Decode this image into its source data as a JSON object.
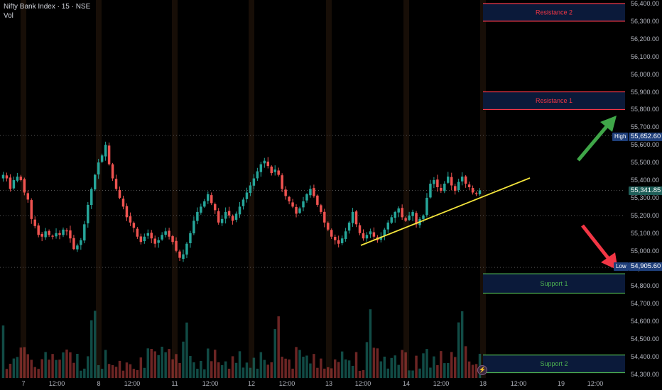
{
  "header": {
    "title": "Nifty Bank Index · 15 · NSE",
    "volume_label": "Vol"
  },
  "colors": {
    "up": "#26a69a",
    "down": "#ef5350",
    "resistance": "#f23645",
    "support": "#4caf50",
    "zone_fill": "#0b1a3a",
    "trendline": "#f5e63c",
    "arrow_up": "#3fa648",
    "arrow_down": "#f23645",
    "current_tag": "#1f5f59",
    "high_tag": "#1f3f7a",
    "low_tag": "#1f3f7a"
  },
  "price_tags": {
    "current": "55,341.85",
    "high_label": "High",
    "high_value": "55,652.60",
    "low_label": "Low",
    "low_value": "54,905.60"
  },
  "zones": [
    {
      "name": "resistance-2",
      "label": "Resistance 2",
      "type": "resistance",
      "top": 56400,
      "bottom": 56300
    },
    {
      "name": "resistance-1",
      "label": "Resistance 1",
      "type": "resistance",
      "top": 55900,
      "bottom": 55800
    },
    {
      "name": "support-1",
      "label": "Support 1",
      "type": "support",
      "top": 54870,
      "bottom": 54760
    },
    {
      "name": "support-2",
      "label": "Support 2",
      "type": "support",
      "top": 54410,
      "bottom": 54310
    }
  ],
  "chart_data": {
    "type": "candlestick",
    "title": "Nifty Bank Index · 15 · NSE",
    "y_ticks": [
      "56,400.00",
      "56,300.00",
      "56,200.00",
      "56,100.00",
      "56,000.00",
      "55,900.00",
      "55,800.00",
      "55,700.00",
      "55,600.00",
      "55,500.00",
      "55,400.00",
      "55,300.00",
      "55,200.00",
      "55,100.00",
      "55,000.00",
      "54,900.00",
      "54,800.00",
      "54,700.00",
      "54,600.00",
      "54,500.00",
      "54,400.00",
      "54,300.00"
    ],
    "x_ticks": [
      "7",
      "12:00",
      "8",
      "12:00",
      "11",
      "12:00",
      "12",
      "12:00",
      "13",
      "12:00",
      "14",
      "12:00",
      "18",
      "12:00",
      "19",
      "12:00"
    ],
    "ylim": [
      54280,
      56420
    ],
    "closes": [
      55430,
      55410,
      55350,
      55400,
      55420,
      55400,
      55330,
      55290,
      55180,
      55140,
      55090,
      55080,
      55110,
      55090,
      55080,
      55100,
      55090,
      55120,
      55110,
      55070,
      55010,
      55030,
      55060,
      55150,
      55260,
      55350,
      55430,
      55500,
      55540,
      55600,
      55490,
      55410,
      55350,
      55300,
      55250,
      55190,
      55160,
      55130,
      55080,
      55050,
      55080,
      55100,
      55070,
      55040,
      55060,
      55090,
      55110,
      55080,
      55050,
      55000,
      54960,
      54980,
      55040,
      55100,
      55170,
      55220,
      55250,
      55280,
      55320,
      55270,
      55230,
      55160,
      55180,
      55220,
      55200,
      55170,
      55210,
      55250,
      55290,
      55330,
      55370,
      55410,
      55450,
      55490,
      55510,
      55480,
      55440,
      55460,
      55430,
      55350,
      55310,
      55280,
      55250,
      55210,
      55240,
      55280,
      55320,
      55350,
      55310,
      55260,
      55220,
      55160,
      55120,
      55080,
      55060,
      55040,
      55070,
      55110,
      55160,
      55220,
      55150,
      55100,
      55070,
      55090,
      55110,
      55080,
      55060,
      55080,
      55120,
      55160,
      55190,
      55220,
      55240,
      55190,
      55170,
      55200,
      55220,
      55150,
      55180,
      55200,
      55300,
      55380,
      55400,
      55360,
      55340,
      55380,
      55420,
      55370,
      55340,
      55390,
      55420,
      55380,
      55360,
      55330,
      55320,
      55342
    ]
  }
}
